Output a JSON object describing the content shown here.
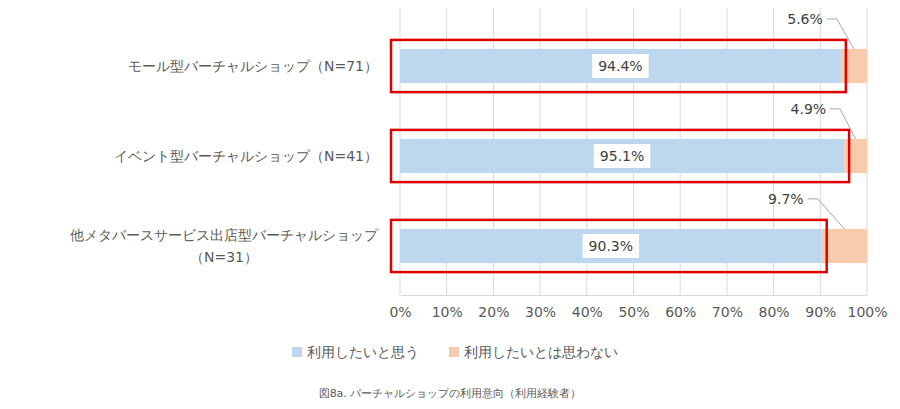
{
  "chart_data": {
    "type": "bar",
    "orientation": "horizontal",
    "stacked": true,
    "title": "図8a. バーチャルショップの利用意向（利用経験者）",
    "categories": [
      "モール型バーチャルショップ（N=71）",
      "イベント型バーチャルショップ（N=41）",
      "他メタバースサービス出店型バーチャルショップ\n（N=31）"
    ],
    "series": [
      {
        "name": "利用したいと思う",
        "color": "#bdd7ee",
        "values": [
          94.4,
          95.1,
          90.3
        ],
        "value_labels": [
          "94.4%",
          "95.1%",
          "90.3%"
        ]
      },
      {
        "name": "利用したいとは思わない",
        "color": "#f8cbad",
        "values": [
          5.6,
          4.9,
          9.7
        ],
        "value_labels": [
          "5.6%",
          "4.9%",
          "9.7%"
        ]
      }
    ],
    "xlim": [
      0,
      100
    ],
    "xticks": [
      {
        "value": 0,
        "label": "0%"
      },
      {
        "value": 10,
        "label": "10%"
      },
      {
        "value": 20,
        "label": "20%"
      },
      {
        "value": 30,
        "label": "30%"
      },
      {
        "value": 40,
        "label": "40%"
      },
      {
        "value": 50,
        "label": "50%"
      },
      {
        "value": 60,
        "label": "60%"
      },
      {
        "value": 70,
        "label": "70%"
      },
      {
        "value": 80,
        "label": "80%"
      },
      {
        "value": 90,
        "label": "90%"
      },
      {
        "value": 100,
        "label": "100%"
      }
    ],
    "grid": true,
    "legend": "bottom",
    "data_labels": true
  }
}
